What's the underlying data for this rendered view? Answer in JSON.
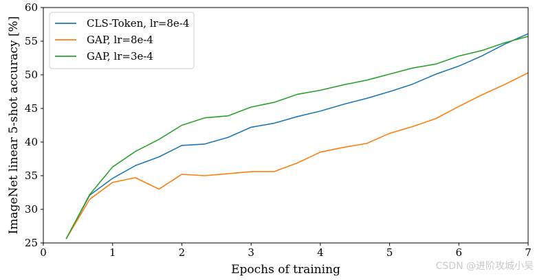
{
  "chart_data": {
    "type": "line",
    "title": "",
    "xlabel": "Epochs of training",
    "ylabel": "ImageNet linear 5-shot accuracy [%]",
    "xlim": [
      0,
      7
    ],
    "ylim": [
      25,
      60
    ],
    "xticks": [
      0,
      1,
      2,
      3,
      4,
      5,
      6,
      7
    ],
    "yticks": [
      25,
      30,
      35,
      40,
      45,
      50,
      55,
      60
    ],
    "grid": false,
    "legend_position": "top-left",
    "series": [
      {
        "name": "CLS-Token, lr=8e-4",
        "color": "#1f77b4",
        "x": [
          0.33,
          0.67,
          1.0,
          1.33,
          1.67,
          2.0,
          2.33,
          2.67,
          3.0,
          3.33,
          3.67,
          4.0,
          4.33,
          4.67,
          5.0,
          5.33,
          5.67,
          6.0,
          6.33,
          6.67,
          7.0
        ],
        "y": [
          25.6,
          32.1,
          34.6,
          36.5,
          37.8,
          39.5,
          39.7,
          40.7,
          42.2,
          42.8,
          43.8,
          44.6,
          45.6,
          46.5,
          47.5,
          48.6,
          50.1,
          51.3,
          52.8,
          54.6,
          56.1
        ]
      },
      {
        "name": "GAP, lr=8e-4",
        "color": "#ff7f0e",
        "x": [
          0.33,
          0.67,
          1.0,
          1.33,
          1.67,
          2.0,
          2.33,
          2.67,
          3.0,
          3.33,
          3.67,
          4.0,
          4.33,
          4.67,
          5.0,
          5.33,
          5.67,
          6.0,
          6.33,
          6.67,
          7.0
        ],
        "y": [
          25.6,
          31.5,
          34.0,
          34.7,
          33.0,
          35.2,
          35.0,
          35.3,
          35.6,
          35.6,
          36.9,
          38.5,
          39.2,
          39.8,
          41.3,
          42.3,
          43.5,
          45.3,
          47.0,
          48.6,
          50.3
        ]
      },
      {
        "name": "GAP, lr=3e-4",
        "color": "#2ca02c",
        "x": [
          0.33,
          0.67,
          1.0,
          1.33,
          1.67,
          2.0,
          2.33,
          2.67,
          3.0,
          3.33,
          3.67,
          4.0,
          4.33,
          4.67,
          5.0,
          5.33,
          5.67,
          6.0,
          6.33,
          6.67,
          7.0
        ],
        "y": [
          25.6,
          32.2,
          36.3,
          38.6,
          40.4,
          42.5,
          43.6,
          43.9,
          45.2,
          45.9,
          47.1,
          47.7,
          48.5,
          49.2,
          50.1,
          51.0,
          51.6,
          52.8,
          53.6,
          54.8,
          55.7
        ]
      }
    ]
  },
  "watermark": "CSDN @进阶攻城小吴"
}
